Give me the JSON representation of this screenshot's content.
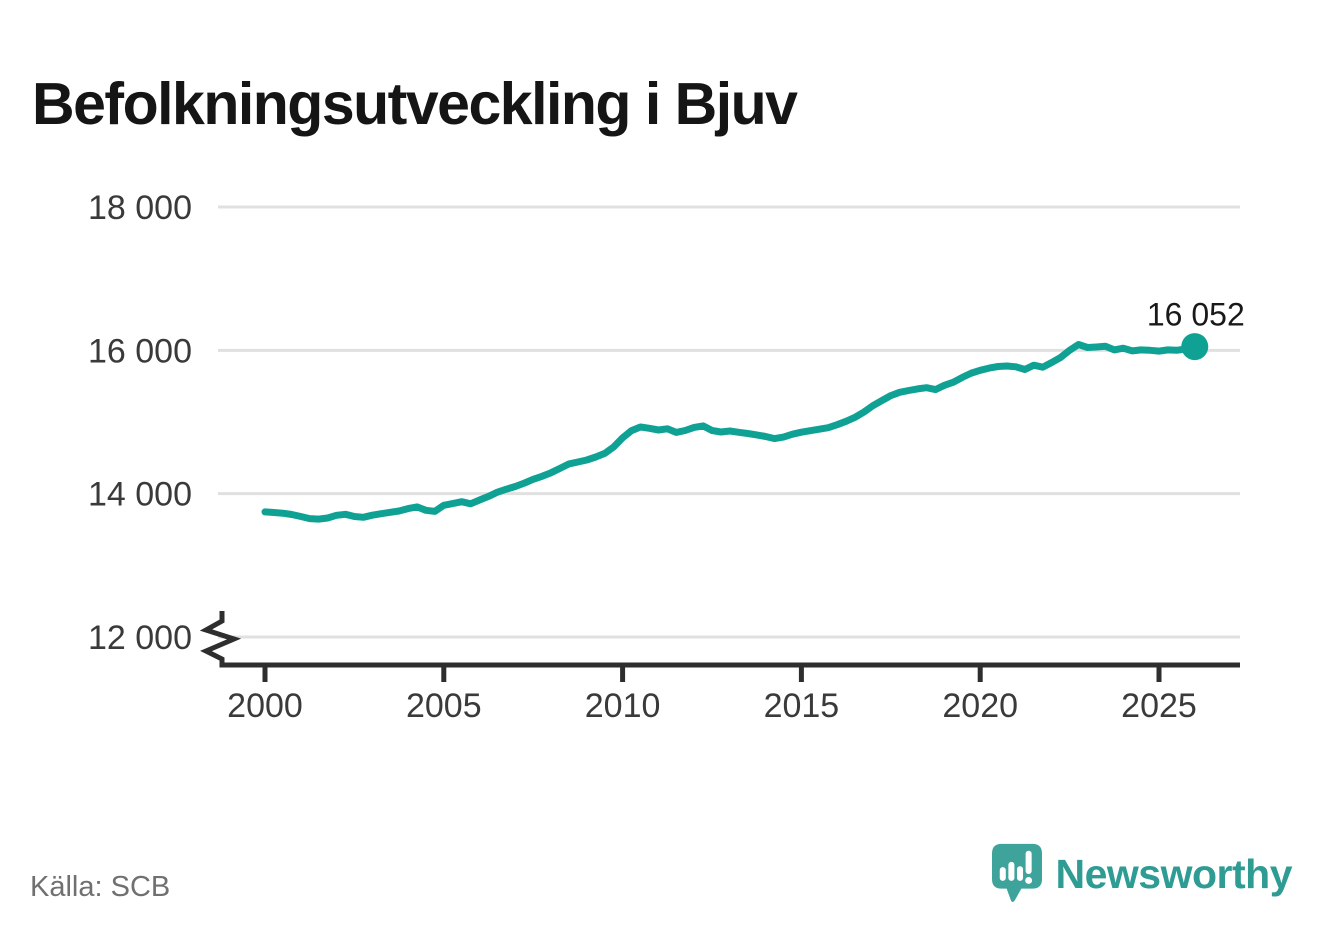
{
  "title": "Befolkningsutveckling i Bjuv",
  "source": "Källa: SCB",
  "branding": {
    "name": "Newsworthy",
    "icon": "newsworthy-speech-bubble-barchart-icon"
  },
  "colors": {
    "line": "#0fa294",
    "dot": "#0fa294",
    "grid": "#e0e0e0",
    "axis": "#2e2e2e",
    "tick_label": "#3a3a3a",
    "logo": "#3ea39b",
    "wordmark": "#2f9c94",
    "annotation": "#191919"
  },
  "chart_data": {
    "type": "line",
    "title": "Befolkningsutveckling i Bjuv",
    "xlabel": "",
    "ylabel": "",
    "legend": "none",
    "grid": true,
    "y_axis_break": true,
    "x_range": [
      2000,
      2026
    ],
    "ylim": [
      12000,
      18000
    ],
    "x_ticks": [
      {
        "value": 2000,
        "label": "2000"
      },
      {
        "value": 2005,
        "label": "2005"
      },
      {
        "value": 2010,
        "label": "2010"
      },
      {
        "value": 2015,
        "label": "2015"
      },
      {
        "value": 2020,
        "label": "2020"
      },
      {
        "value": 2025,
        "label": "2025"
      }
    ],
    "y_ticks": [
      {
        "value": 12000,
        "label": "12 000"
      },
      {
        "value": 14000,
        "label": "14 000"
      },
      {
        "value": 16000,
        "label": "16 000"
      },
      {
        "value": 18000,
        "label": "18 000"
      }
    ],
    "end_label": "16 052",
    "end_value": 16052,
    "series_name": "Befolkning",
    "points": [
      [
        2000.0,
        13745
      ],
      [
        2000.25,
        13737
      ],
      [
        2000.5,
        13728
      ],
      [
        2000.75,
        13710
      ],
      [
        2001.0,
        13682
      ],
      [
        2001.25,
        13652
      ],
      [
        2001.5,
        13645
      ],
      [
        2001.75,
        13660
      ],
      [
        2002.0,
        13698
      ],
      [
        2002.25,
        13712
      ],
      [
        2002.5,
        13682
      ],
      [
        2002.75,
        13670
      ],
      [
        2003.0,
        13700
      ],
      [
        2003.25,
        13720
      ],
      [
        2003.5,
        13740
      ],
      [
        2003.75,
        13758
      ],
      [
        2004.0,
        13792
      ],
      [
        2004.25,
        13815
      ],
      [
        2004.5,
        13768
      ],
      [
        2004.75,
        13752
      ],
      [
        2005.0,
        13838
      ],
      [
        2005.25,
        13862
      ],
      [
        2005.5,
        13888
      ],
      [
        2005.75,
        13858
      ],
      [
        2006.0,
        13912
      ],
      [
        2006.25,
        13962
      ],
      [
        2006.5,
        14020
      ],
      [
        2006.75,
        14062
      ],
      [
        2007.0,
        14100
      ],
      [
        2007.25,
        14148
      ],
      [
        2007.5,
        14200
      ],
      [
        2007.75,
        14242
      ],
      [
        2008.0,
        14292
      ],
      [
        2008.25,
        14352
      ],
      [
        2008.5,
        14415
      ],
      [
        2008.75,
        14442
      ],
      [
        2009.0,
        14470
      ],
      [
        2009.25,
        14512
      ],
      [
        2009.5,
        14562
      ],
      [
        2009.75,
        14652
      ],
      [
        2010.0,
        14780
      ],
      [
        2010.25,
        14880
      ],
      [
        2010.5,
        14930
      ],
      [
        2010.75,
        14912
      ],
      [
        2011.0,
        14888
      ],
      [
        2011.25,
        14905
      ],
      [
        2011.5,
        14855
      ],
      [
        2011.75,
        14882
      ],
      [
        2012.0,
        14925
      ],
      [
        2012.25,
        14945
      ],
      [
        2012.5,
        14882
      ],
      [
        2012.75,
        14860
      ],
      [
        2013.0,
        14875
      ],
      [
        2013.25,
        14856
      ],
      [
        2013.5,
        14840
      ],
      [
        2013.75,
        14820
      ],
      [
        2014.0,
        14798
      ],
      [
        2014.25,
        14768
      ],
      [
        2014.5,
        14790
      ],
      [
        2014.75,
        14830
      ],
      [
        2015.0,
        14858
      ],
      [
        2015.25,
        14878
      ],
      [
        2015.5,
        14900
      ],
      [
        2015.75,
        14920
      ],
      [
        2016.0,
        14962
      ],
      [
        2016.25,
        15010
      ],
      [
        2016.5,
        15065
      ],
      [
        2016.75,
        15140
      ],
      [
        2017.0,
        15228
      ],
      [
        2017.25,
        15298
      ],
      [
        2017.5,
        15368
      ],
      [
        2017.75,
        15415
      ],
      [
        2018.0,
        15440
      ],
      [
        2018.25,
        15462
      ],
      [
        2018.5,
        15478
      ],
      [
        2018.75,
        15452
      ],
      [
        2019.0,
        15512
      ],
      [
        2019.25,
        15556
      ],
      [
        2019.5,
        15622
      ],
      [
        2019.75,
        15682
      ],
      [
        2020.0,
        15722
      ],
      [
        2020.25,
        15752
      ],
      [
        2020.5,
        15775
      ],
      [
        2020.75,
        15782
      ],
      [
        2021.0,
        15770
      ],
      [
        2021.25,
        15732
      ],
      [
        2021.5,
        15792
      ],
      [
        2021.75,
        15765
      ],
      [
        2022.0,
        15830
      ],
      [
        2022.25,
        15902
      ],
      [
        2022.5,
        16000
      ],
      [
        2022.75,
        16082
      ],
      [
        2023.0,
        16040
      ],
      [
        2023.25,
        16046
      ],
      [
        2023.5,
        16056
      ],
      [
        2023.75,
        16006
      ],
      [
        2024.0,
        16030
      ],
      [
        2024.25,
        15992
      ],
      [
        2024.5,
        16006
      ],
      [
        2024.75,
        16000
      ],
      [
        2025.0,
        15990
      ],
      [
        2025.25,
        16006
      ],
      [
        2025.5,
        16000
      ],
      [
        2025.75,
        16022
      ],
      [
        2026.0,
        16052
      ]
    ]
  }
}
